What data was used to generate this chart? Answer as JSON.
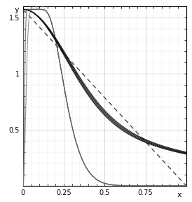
{
  "xlim": [
    0,
    1.0
  ],
  "ylim": [
    0,
    1.6
  ],
  "xticks": [
    0,
    0.25,
    0.5,
    0.75
  ],
  "xtick_labels": [
    "0",
    "0.25",
    "0.5",
    "0.75"
  ],
  "yticks": [
    0.5,
    1.0,
    1.5
  ],
  "ytick_labels": [
    "0.5",
    "1",
    "1.5"
  ],
  "xlabel": "x",
  "ylabel": "y",
  "jmax_values": [
    3,
    5,
    10,
    20,
    100
  ],
  "figsize": [
    2.74,
    2.88
  ],
  "dpi": 100,
  "grid_major_color": "#bbbbbb",
  "grid_minor_color": "#dddddd",
  "dark_color": "#111111",
  "dashed_color": "#333333"
}
